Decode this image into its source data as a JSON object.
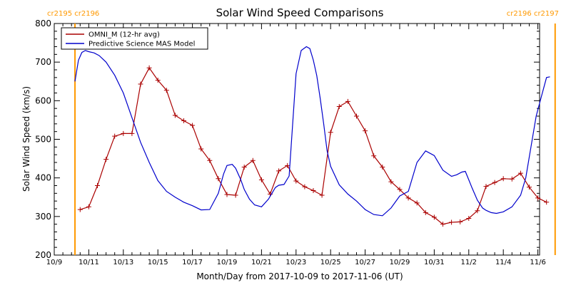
{
  "chart_data": {
    "type": "line",
    "title": "Solar Wind Speed Comparisons",
    "xlabel": "Month/Day from 2017-10-09 to 2017-11-06 (UT)",
    "ylabel": "Solar Wind Speed (km/s)",
    "xlim": [
      0,
      28.1
    ],
    "ylim": [
      200,
      800
    ],
    "y_ticks": [
      200,
      300,
      400,
      500,
      600,
      700,
      800
    ],
    "x_ticks": [
      {
        "day": 0,
        "label": "10/9"
      },
      {
        "day": 2,
        "label": "10/11"
      },
      {
        "day": 4,
        "label": "10/13"
      },
      {
        "day": 6,
        "label": "10/15"
      },
      {
        "day": 8,
        "label": "10/17"
      },
      {
        "day": 10,
        "label": "10/19"
      },
      {
        "day": 12,
        "label": "10/21"
      },
      {
        "day": 14,
        "label": "10/23"
      },
      {
        "day": 16,
        "label": "10/25"
      },
      {
        "day": 18,
        "label": "10/27"
      },
      {
        "day": 20,
        "label": "10/29"
      },
      {
        "day": 22,
        "label": "10/31"
      },
      {
        "day": 24,
        "label": "11/2"
      },
      {
        "day": 26,
        "label": "11/4"
      },
      {
        "day": 28,
        "label": "11/6"
      }
    ],
    "carrington": [
      {
        "day": 1.2,
        "label": "cr2195 cr2196",
        "label_side": "left"
      },
      {
        "day": 29.0,
        "label": "cr2196 cr2197",
        "label_side": "right"
      }
    ],
    "legend": {
      "position": "top-left"
    },
    "series": [
      {
        "name": "OMNI_M (12-hr avg)",
        "color": "#aa0000",
        "markers": true,
        "x": [
          1.5,
          2.0,
          2.5,
          3.0,
          3.5,
          4.0,
          4.5,
          5.0,
          5.5,
          6.0,
          6.5,
          7.0,
          7.5,
          8.0,
          8.5,
          9.0,
          9.5,
          10.0,
          10.5,
          11.0,
          11.5,
          12.0,
          12.5,
          13.0,
          13.5,
          14.0,
          14.5,
          15.0,
          15.5,
          16.0,
          16.5,
          17.0,
          17.5,
          18.0,
          18.5,
          19.0,
          19.5,
          20.0,
          20.5,
          21.0,
          21.5,
          22.0,
          22.5,
          23.0,
          23.5,
          24.0,
          24.5,
          25.0,
          25.5,
          26.0,
          26.5,
          27.0,
          27.5,
          28.0,
          28.5
        ],
        "y": [
          318,
          325,
          380,
          448,
          508,
          515,
          515,
          643,
          685,
          653,
          627,
          562,
          548,
          536,
          475,
          445,
          398,
          357,
          355,
          428,
          445,
          395,
          358,
          418,
          432,
          392,
          377,
          367,
          355,
          518,
          585,
          598,
          560,
          522,
          457,
          428,
          390,
          370,
          348,
          335,
          310,
          298,
          280,
          285,
          286,
          295,
          315,
          378,
          388,
          398,
          397,
          412,
          376,
          348,
          337
        ]
      },
      {
        "name": "Predictive Science MAS Model",
        "color": "#0000cc",
        "markers": false,
        "x": [
          1.2,
          1.4,
          1.6,
          1.8,
          2.0,
          2.3,
          2.6,
          3.0,
          3.5,
          4.0,
          4.5,
          5.0,
          5.5,
          6.0,
          6.5,
          7.0,
          7.5,
          8.0,
          8.5,
          9.0,
          9.5,
          9.8,
          10.0,
          10.3,
          10.5,
          10.8,
          11.0,
          11.3,
          11.6,
          12.0,
          12.4,
          12.8,
          13.0,
          13.3,
          13.6,
          14.0,
          14.3,
          14.6,
          14.8,
          15.0,
          15.2,
          15.4,
          15.6,
          15.8,
          16.0,
          16.5,
          17.0,
          17.5,
          18.0,
          18.5,
          19.0,
          19.5,
          20.0,
          20.5,
          21.0,
          21.5,
          22.0,
          22.5,
          23.0,
          23.3,
          23.6,
          23.8,
          24.0,
          24.2,
          24.5,
          24.8,
          25.0,
          25.3,
          25.6,
          26.0,
          26.5,
          27.0,
          27.3,
          27.6,
          27.9,
          28.2,
          28.5,
          28.7
        ],
        "y": [
          650,
          705,
          725,
          730,
          727,
          724,
          717,
          700,
          666,
          620,
          556,
          492,
          440,
          393,
          365,
          350,
          337,
          328,
          317,
          318,
          360,
          410,
          432,
          435,
          425,
          395,
          370,
          345,
          330,
          325,
          345,
          375,
          381,
          383,
          405,
          670,
          730,
          740,
          735,
          705,
          665,
          605,
          540,
          470,
          430,
          382,
          358,
          340,
          318,
          305,
          302,
          322,
          353,
          365,
          440,
          470,
          458,
          420,
          404,
          408,
          415,
          417,
          395,
          373,
          342,
          322,
          316,
          310,
          308,
          312,
          325,
          355,
          400,
          480,
          560,
          610,
          660,
          662
        ]
      }
    ]
  }
}
